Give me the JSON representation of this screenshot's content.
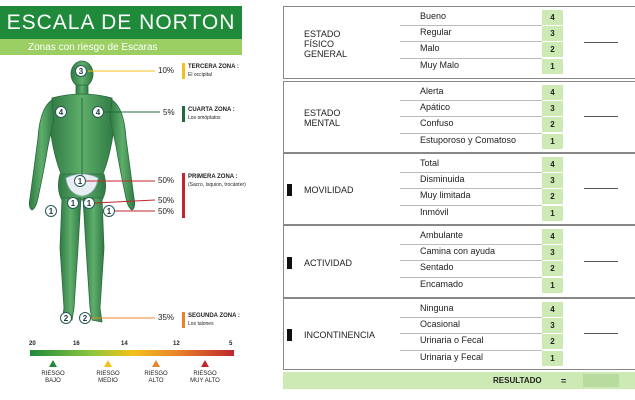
{
  "header": {
    "title": "ESCALA DE NORTON",
    "subtitle": "Zonas con riesgo de Escaras"
  },
  "zones": [
    {
      "percent": "10%",
      "title": "TERCERA ZONA :",
      "desc": "El occipital",
      "color": "#f2c21b"
    },
    {
      "percent": "5%",
      "title": "CUARTA ZONA :",
      "desc": "Los omóplatos",
      "color": "#1f6b3a"
    },
    {
      "percent": "50%",
      "title": "PRIMERA ZONA :",
      "desc": "(Sacro, Isquion, trocánter)",
      "color": "#c0262d"
    },
    {
      "percent": "50%",
      "title": "",
      "desc": "",
      "color": "#c0262d"
    },
    {
      "percent": "50%",
      "title": "",
      "desc": "",
      "color": "#c0262d"
    },
    {
      "percent": "35%",
      "title": "SEGUNDA ZONA :",
      "desc": "Los talones",
      "color": "#e8852a"
    }
  ],
  "body_markers": [
    "3",
    "4",
    "4",
    "1",
    "1",
    "1",
    "1",
    "1",
    "2",
    "2"
  ],
  "risk_scale": {
    "numbers": [
      "20",
      "16",
      "14",
      "12",
      "5"
    ],
    "labels": [
      {
        "line1": "RIESGO",
        "line2": "BAJO",
        "color": "#1f8a3a"
      },
      {
        "line1": "RIESGO",
        "line2": "MEDIO",
        "color": "#f2c21b"
      },
      {
        "line1": "RIESGO",
        "line2": "ALTO",
        "color": "#e8852a"
      },
      {
        "line1": "RIESGO",
        "line2": "MUY ALTO",
        "color": "#c0262d"
      }
    ]
  },
  "categories": [
    {
      "name_lines": [
        "ESTADO",
        "FÍSICO",
        "GENERAL"
      ],
      "items": [
        {
          "label": "Bueno",
          "score": "4"
        },
        {
          "label": "Regular",
          "score": "3"
        },
        {
          "label": "Malo",
          "score": "2"
        },
        {
          "label": "Muy Malo",
          "score": "1"
        }
      ]
    },
    {
      "name_lines": [
        "ESTADO",
        "MENTAL"
      ],
      "items": [
        {
          "label": "Alerta",
          "score": "4"
        },
        {
          "label": "Apático",
          "score": "3"
        },
        {
          "label": "Confuso",
          "score": "2"
        },
        {
          "label": "Estuporoso y Comatoso",
          "score": "1"
        }
      ]
    },
    {
      "name_lines": [
        "MOVILIDAD"
      ],
      "items": [
        {
          "label": "Total",
          "score": "4"
        },
        {
          "label": "Disminuida",
          "score": "3"
        },
        {
          "label": "Muy limitada",
          "score": "2"
        },
        {
          "label": "Inmóvil",
          "score": "1"
        }
      ]
    },
    {
      "name_lines": [
        "ACTIVIDAD"
      ],
      "items": [
        {
          "label": "Ambulante",
          "score": "4"
        },
        {
          "label": "Camina con ayuda",
          "score": "3"
        },
        {
          "label": "Sentado",
          "score": "2"
        },
        {
          "label": "Encamado",
          "score": "1"
        }
      ]
    },
    {
      "name_lines": [
        "INCONTINENCIA"
      ],
      "items": [
        {
          "label": "Ninguna",
          "score": "4"
        },
        {
          "label": "Ocasional",
          "score": "3"
        },
        {
          "label": "Urinaria o Fecal",
          "score": "2"
        },
        {
          "label": "Urinaria y Fecal",
          "score": "1"
        }
      ]
    }
  ],
  "result": {
    "label": "RESULTADO",
    "equals": "="
  }
}
